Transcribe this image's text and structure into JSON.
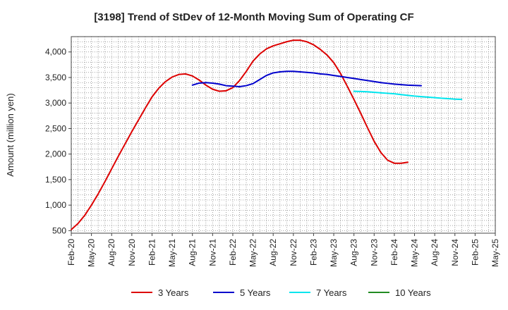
{
  "chart_data": {
    "type": "line",
    "title": "[3198]  Trend of StDev of 12-Month Moving Sum of Operating CF",
    "xlabel": "",
    "ylabel": "Amount (million yen)",
    "ylim": [
      450,
      4300
    ],
    "yticks": [
      500,
      1000,
      1500,
      2000,
      2500,
      3000,
      3500,
      4000
    ],
    "ytick_labels": [
      "500",
      "1,000",
      "1,500",
      "2,000",
      "2,500",
      "3,000",
      "3,500",
      "4,000"
    ],
    "xtick_labels": [
      "Feb-20",
      "May-20",
      "Aug-20",
      "Nov-20",
      "Feb-21",
      "May-21",
      "Aug-21",
      "Nov-21",
      "Feb-22",
      "May-22",
      "Aug-22",
      "Nov-22",
      "Feb-23",
      "May-23",
      "Aug-23",
      "Nov-23",
      "Feb-24",
      "May-24",
      "Aug-24",
      "Nov-24",
      "Feb-25",
      "May-25"
    ],
    "grid": true,
    "legend_position": "bottom",
    "series": [
      {
        "name": "3 Years",
        "color": "#dd0000",
        "start": "Feb-20",
        "values": [
          520,
          640,
          800,
          1000,
          1220,
          1460,
          1710,
          1960,
          2200,
          2440,
          2670,
          2900,
          3120,
          3290,
          3420,
          3510,
          3560,
          3570,
          3530,
          3450,
          3350,
          3270,
          3230,
          3240,
          3300,
          3440,
          3620,
          3820,
          3960,
          4060,
          4120,
          4160,
          4200,
          4230,
          4230,
          4200,
          4140,
          4050,
          3940,
          3790,
          3580,
          3330,
          3070,
          2800,
          2520,
          2250,
          2030,
          1880,
          1820,
          1820,
          1840
        ]
      },
      {
        "name": "5 Years",
        "color": "#0000cc",
        "start": "Aug-21",
        "values": [
          3350,
          3390,
          3400,
          3390,
          3370,
          3340,
          3330,
          3320,
          3340,
          3380,
          3460,
          3540,
          3590,
          3610,
          3620,
          3620,
          3610,
          3600,
          3590,
          3570,
          3560,
          3540,
          3520,
          3500,
          3480,
          3460,
          3440,
          3420,
          3400,
          3385,
          3370,
          3360,
          3350,
          3345,
          3340
        ]
      },
      {
        "name": "7 Years",
        "color": "#00e5ee",
        "start": "Aug-23",
        "values": [
          3230,
          3225,
          3220,
          3210,
          3200,
          3190,
          3180,
          3165,
          3150,
          3135,
          3125,
          3115,
          3105,
          3095,
          3085,
          3075,
          3070
        ]
      },
      {
        "name": "10 Years",
        "color": "#228b22",
        "start": "Aug-23",
        "values": []
      }
    ]
  }
}
